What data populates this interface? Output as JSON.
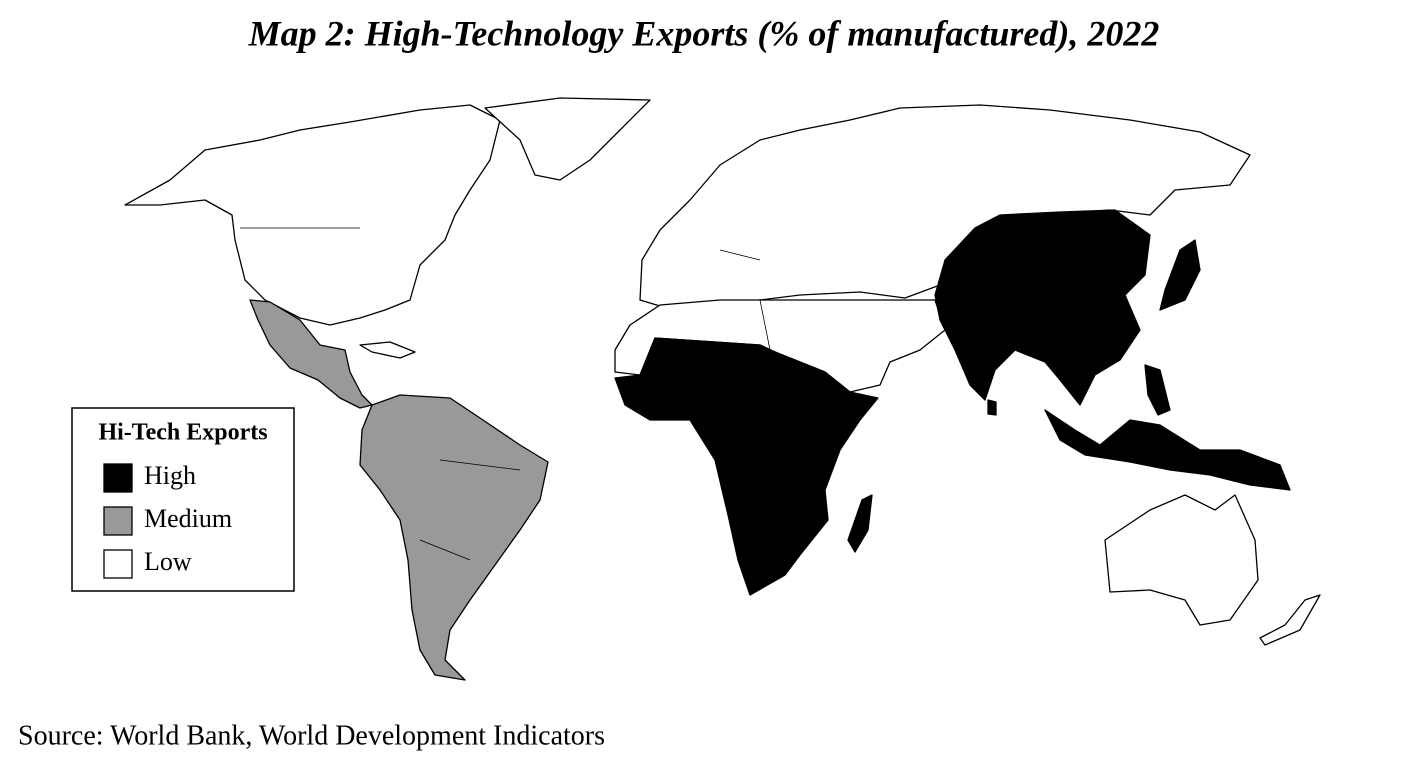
{
  "title": "Map 2: High-Technology Exports (% of manufactured), 2022",
  "legend": {
    "title": "Hi-Tech Exports",
    "items": [
      {
        "label": "High",
        "color": "#000000"
      },
      {
        "label": "Medium",
        "color": "#999999"
      },
      {
        "label": "Low",
        "color": "#ffffff"
      }
    ]
  },
  "source": "Source: World Bank, World Development Indicators"
}
